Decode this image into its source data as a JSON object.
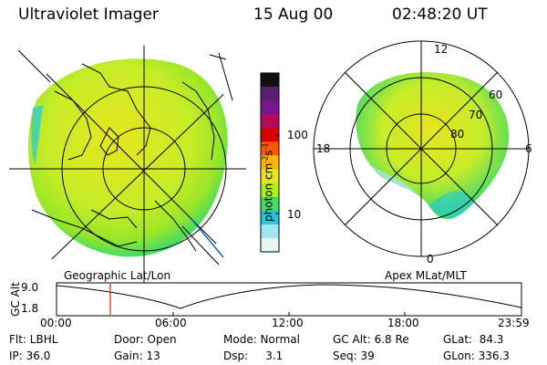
{
  "header": {
    "instrument": "Ultraviolet Imager",
    "date": "15 Aug 00",
    "time": "02:48:20 UT"
  },
  "panels": {
    "geo_label": "Geographic Lat/Lon",
    "mag_label": "Apex MLat/MLT"
  },
  "mlt_labels": {
    "top": "12",
    "left": "18",
    "right": "6",
    "bottom": "0"
  },
  "lat_rings": [
    "60",
    "70",
    "80"
  ],
  "colorbar": {
    "unit_label": "photon cm",
    "tick_100": "100",
    "tick_10": "10",
    "colors": [
      "#101010",
      "#5a1e6e",
      "#7a1490",
      "#b40a5a",
      "#d80000",
      "#ff5a00",
      "#ffb400",
      "#e6e61e",
      "#aaf01e",
      "#46dc64",
      "#23c8dc",
      "#a0e6f0",
      "#e6f5f5"
    ]
  },
  "altitude_plot": {
    "axis_label": "GC Alt",
    "y_ticks": [
      "9.0",
      "1.8"
    ],
    "x_ticks": [
      "00:00",
      "06:00",
      "12:00",
      "18:00",
      "23:59"
    ],
    "current_time_marker": "02:48"
  },
  "info": {
    "flt": "Flt: LBHL",
    "door": "Door: Open",
    "mode": "Mode: Normal",
    "gc_alt": "GC Alt: 6.8 Re",
    "glat": "GLat:  84.3",
    "ip": "IP: 36.0",
    "gain": "Gain: 13",
    "dsp": "Dsp:     3.1",
    "seq": "Seq: 39",
    "glon": "GLon: 336.3"
  }
}
